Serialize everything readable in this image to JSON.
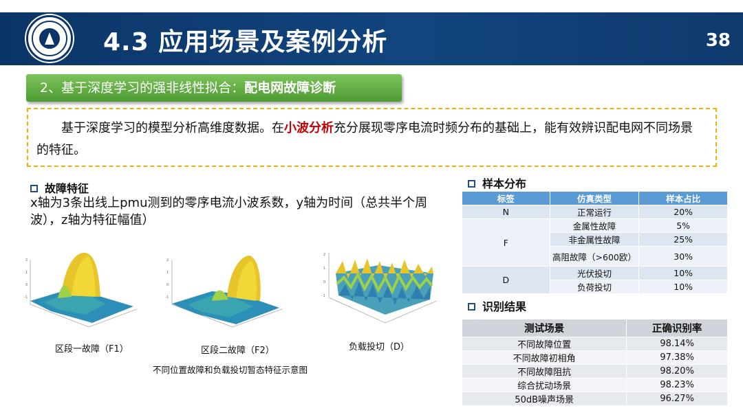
{
  "header": {
    "title": "4.3 应用场景及案例分析",
    "page_number": "38",
    "logo_icon": "university-seal-icon"
  },
  "subtitle": {
    "prefix": "2、基于深度学习的强非线性拟合：",
    "bold": "配电网故障诊断"
  },
  "intro": {
    "part1": "基于深度学习的模型分析高维度数据。在",
    "highlight": "小波分析",
    "part2": "充分展现零序电流时频分布的基础上，能有效辨识配电网不同场景的特征。"
  },
  "features": {
    "heading": "故障特征",
    "description": "x轴为3条出线上pmu测到的零序电流小波系数，y轴为时间（总共半个周波），z轴为特征幅值）",
    "plots": [
      {
        "caption": "区段一故障（F1）"
      },
      {
        "caption": "区段二故障（F2）"
      },
      {
        "caption": "负载投切（D）"
      }
    ],
    "figure_caption": "不同位置故障和负载投切暂态特征示意图"
  },
  "sample_distribution": {
    "heading": "样本分布",
    "columns": [
      "标签",
      "仿真类型",
      "样本占比"
    ],
    "groups": [
      {
        "label": "N",
        "rows": [
          {
            "type": "正常运行",
            "ratio": "20%"
          }
        ]
      },
      {
        "label": "F",
        "rows": [
          {
            "type": "金属性故障",
            "ratio": "5%"
          },
          {
            "type": "非金属性故障",
            "ratio": "25%"
          },
          {
            "type": "高阻故障（>600欧）",
            "ratio": "30%"
          }
        ]
      },
      {
        "label": "D",
        "rows": [
          {
            "type": "光伏投切",
            "ratio": "10%"
          },
          {
            "type": "负荷投切",
            "ratio": "10%"
          }
        ]
      }
    ]
  },
  "results": {
    "heading": "识别结果",
    "columns": [
      "测试场景",
      "正确识别率"
    ],
    "rows": [
      {
        "scenario": "不同故障位置",
        "rate": "98.14%"
      },
      {
        "scenario": "不同故障初相角",
        "rate": "97.38%"
      },
      {
        "scenario": "不同故障阻抗",
        "rate": "98.20%"
      },
      {
        "scenario": "综合扰动场景",
        "rate": "98.23%"
      },
      {
        "scenario": "50dB噪声场景",
        "rate": "96.27%"
      }
    ]
  },
  "colors": {
    "header_bg": "#0b3568",
    "subtitle_bg": "#5aa83c",
    "dashed_border": "#f0b400",
    "highlight_red": "#c00000",
    "table_header_blue": "#5b9bd5"
  }
}
